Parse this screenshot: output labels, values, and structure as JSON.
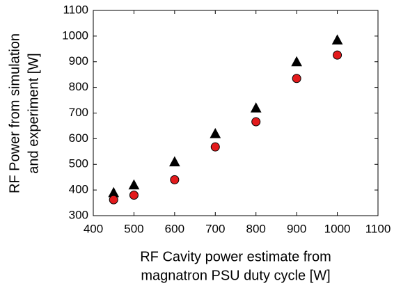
{
  "chart_data": {
    "type": "scatter",
    "x_label": [
      "RF Cavity power estimate from",
      "magnatron PSU duty cycle [W]"
    ],
    "y_label": [
      "RF Power from simulation",
      "and experiment [W]"
    ],
    "x": [
      450,
      500,
      600,
      700,
      800,
      900,
      1000
    ],
    "series": [
      {
        "color": "#000000",
        "marker": "triangle",
        "values": [
          390,
          420,
          510,
          620,
          720,
          900,
          985
        ]
      },
      {
        "color": "#e31a1c",
        "marker": "circle",
        "values": [
          362,
          380,
          440,
          568,
          666,
          835,
          926
        ]
      }
    ],
    "xlim": [
      400,
      1100
    ],
    "xticks": [
      400,
      500,
      600,
      700,
      800,
      900,
      1000,
      1100
    ],
    "ylim": [
      300,
      1100
    ],
    "yticks": [
      300,
      400,
      500,
      600,
      700,
      800,
      900,
      1000,
      1100
    ],
    "grid": false
  }
}
